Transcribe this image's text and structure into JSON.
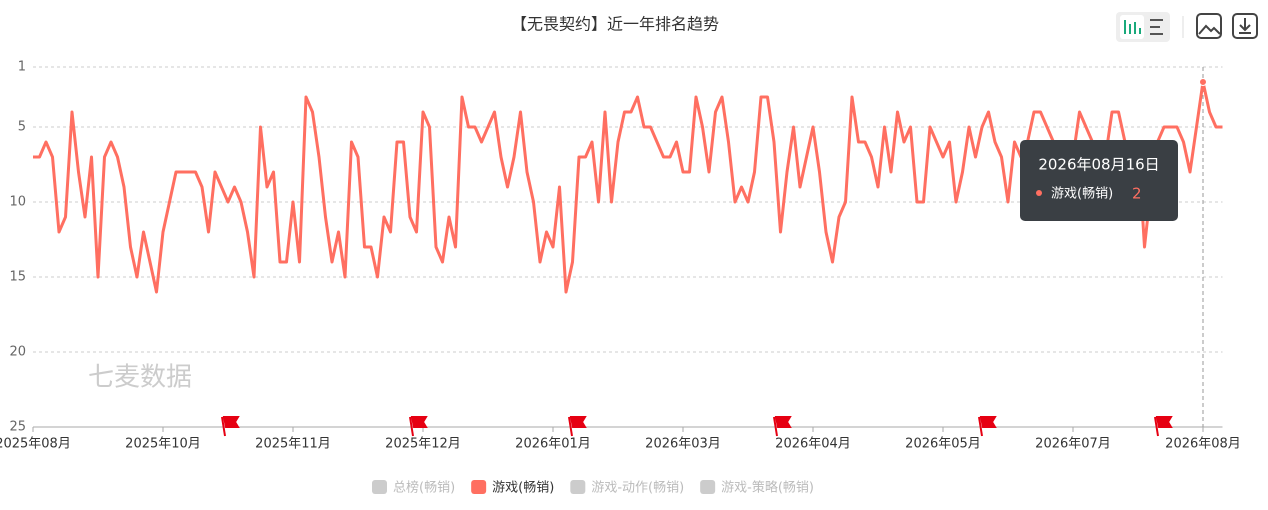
{
  "chart_data": {
    "type": "line",
    "title": "【无畏契约】近一年排名趋势",
    "watermark": "七麦数据",
    "series": [
      {
        "name": "游戏(畅销)",
        "color": "#ff6f61",
        "values": [
          7,
          7,
          6,
          7,
          12,
          11,
          4,
          8,
          11,
          7,
          15,
          7,
          6,
          7,
          9,
          13,
          15,
          12,
          14,
          16,
          12,
          10,
          8,
          8,
          8,
          8,
          9,
          12,
          8,
          9,
          10,
          9,
          10,
          12,
          15,
          5,
          9,
          8,
          14,
          14,
          10,
          14,
          3,
          4,
          7,
          11,
          14,
          12,
          15,
          6,
          7,
          13,
          13,
          15,
          11,
          12,
          6,
          6,
          11,
          12,
          4,
          5,
          13,
          14,
          11,
          13,
          3,
          5,
          5,
          6,
          5,
          4,
          7,
          9,
          7,
          4,
          8,
          10,
          14,
          12,
          13,
          9,
          16,
          14,
          7,
          7,
          6,
          10,
          4,
          10,
          6,
          4,
          4,
          3,
          5,
          5,
          6,
          7,
          7,
          6,
          8,
          8,
          3,
          5,
          8,
          4,
          3,
          6,
          10,
          9,
          10,
          8,
          3,
          3,
          6,
          12,
          8,
          5,
          9,
          7,
          5,
          8,
          12,
          14,
          11,
          10,
          3,
          6,
          6,
          7,
          9,
          5,
          8,
          4,
          6,
          5,
          10,
          10,
          5,
          6,
          7,
          6,
          10,
          8,
          5,
          7,
          5,
          4,
          6,
          7,
          10,
          6,
          7,
          6,
          4,
          4,
          5,
          6,
          8,
          6,
          7,
          4,
          5,
          6,
          9,
          7,
          4,
          4,
          6,
          8,
          6,
          13,
          9,
          6,
          5,
          5,
          5,
          6,
          8,
          5,
          2,
          4,
          5,
          5
        ]
      }
    ],
    "legend_items": [
      {
        "name": "总榜(畅销)",
        "color": "#cccccc"
      },
      {
        "name": "游戏(畅销)",
        "color": "#ff6f61"
      },
      {
        "name": "游戏-动作(畅销)",
        "color": "#cccccc"
      },
      {
        "name": "游戏-策略(畅销)",
        "color": "#cccccc"
      }
    ],
    "xlim": [
      0,
      183
    ],
    "xticks": [
      {
        "value": 0,
        "label": "2025年08月"
      },
      {
        "value": 20,
        "label": "2025年10月"
      },
      {
        "value": 40,
        "label": "2025年11月"
      },
      {
        "value": 60,
        "label": "2025年12月"
      },
      {
        "value": 80,
        "label": "2026年01月"
      },
      {
        "value": 100,
        "label": "2026年03月"
      },
      {
        "value": 120,
        "label": "2026年04月"
      },
      {
        "value": 140,
        "label": "2026年05月"
      },
      {
        "value": 160,
        "label": "2026年07月"
      },
      {
        "value": 180,
        "label": "2026年08月"
      }
    ],
    "ylim": [
      1,
      25
    ],
    "y_inverted": true,
    "yticks": [
      1,
      5,
      10,
      15,
      20,
      25
    ],
    "grid": true,
    "tooltip": {
      "date": "2026年08月16日"
    }
  }
}
